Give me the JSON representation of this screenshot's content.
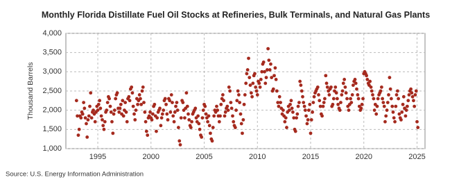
{
  "chart_data": {
    "type": "scatter",
    "title": "Monthly Florida Distillate Fuel Oil Stocks at Refineries, Bulk Terminals, and Natural Gas Plants",
    "y_label": "Thousand Barrels",
    "source": "Source: U.S. Energy Information Administration",
    "xlim": [
      1992,
      2025.75
    ],
    "xticks": [
      1995,
      2000,
      2005,
      2010,
      2015,
      2020,
      2025
    ],
    "ylim": [
      1000,
      4000
    ],
    "yticks": [
      {
        "value": 1000,
        "label": "1,000"
      },
      {
        "value": 1500,
        "label": "1,500"
      },
      {
        "value": 2000,
        "label": "2,000"
      },
      {
        "value": 2500,
        "label": "2,500"
      },
      {
        "value": 3000,
        "label": "3,000"
      },
      {
        "value": 3500,
        "label": "3,500"
      },
      {
        "value": 4000,
        "label": "4,000"
      }
    ],
    "grid": true,
    "color": "#a52a1e",
    "x": [
      1993,
      1993.08,
      1993.17,
      1993.25,
      1993.33,
      1993.42,
      1993.5,
      1993.58,
      1993.67,
      1993.75,
      1993.83,
      1993.92,
      1994,
      1994.08,
      1994.17,
      1994.25,
      1994.33,
      1994.42,
      1994.5,
      1994.58,
      1994.67,
      1994.75,
      1994.83,
      1994.92,
      1995,
      1995.08,
      1995.17,
      1995.25,
      1995.33,
      1995.42,
      1995.5,
      1995.58,
      1995.67,
      1995.75,
      1995.83,
      1995.92,
      1996,
      1996.08,
      1996.17,
      1996.25,
      1996.33,
      1996.42,
      1996.5,
      1996.58,
      1996.67,
      1996.75,
      1996.83,
      1996.92,
      1997,
      1997.08,
      1997.17,
      1997.25,
      1997.33,
      1997.42,
      1997.5,
      1997.58,
      1997.67,
      1997.75,
      1997.83,
      1997.92,
      1998,
      1998.08,
      1998.17,
      1998.25,
      1998.33,
      1998.42,
      1998.5,
      1998.58,
      1998.67,
      1998.75,
      1998.83,
      1998.92,
      1999,
      1999.08,
      1999.17,
      1999.25,
      1999.33,
      1999.42,
      1999.5,
      1999.58,
      1999.67,
      1999.75,
      1999.83,
      1999.92,
      2000,
      2000.08,
      2000.17,
      2000.25,
      2000.33,
      2000.42,
      2000.5,
      2000.58,
      2000.67,
      2000.75,
      2000.83,
      2000.92,
      2001,
      2001.08,
      2001.17,
      2001.25,
      2001.33,
      2001.42,
      2001.5,
      2001.58,
      2001.67,
      2001.75,
      2001.83,
      2001.92,
      2002,
      2002.08,
      2002.17,
      2002.25,
      2002.33,
      2002.42,
      2002.5,
      2002.58,
      2002.67,
      2002.75,
      2002.83,
      2002.92,
      2003,
      2003.08,
      2003.17,
      2003.25,
      2003.33,
      2003.42,
      2003.5,
      2003.58,
      2003.67,
      2003.75,
      2003.83,
      2003.92,
      2004,
      2004.08,
      2004.17,
      2004.25,
      2004.33,
      2004.42,
      2004.5,
      2004.58,
      2004.67,
      2004.75,
      2004.83,
      2004.92,
      2005,
      2005.08,
      2005.17,
      2005.25,
      2005.33,
      2005.42,
      2005.5,
      2005.58,
      2005.67,
      2005.75,
      2005.83,
      2005.92,
      2006,
      2006.08,
      2006.17,
      2006.25,
      2006.33,
      2006.42,
      2006.5,
      2006.58,
      2006.67,
      2006.75,
      2006.83,
      2006.92,
      2007,
      2007.08,
      2007.17,
      2007.25,
      2007.33,
      2007.42,
      2007.5,
      2007.58,
      2007.67,
      2007.75,
      2007.83,
      2007.92,
      2008,
      2008.08,
      2008.17,
      2008.25,
      2008.33,
      2008.42,
      2008.5,
      2008.58,
      2008.67,
      2008.75,
      2008.83,
      2008.92,
      2009,
      2009.08,
      2009.17,
      2009.25,
      2009.33,
      2009.42,
      2009.5,
      2009.58,
      2009.67,
      2009.75,
      2009.83,
      2009.92,
      2010,
      2010.08,
      2010.17,
      2010.25,
      2010.33,
      2010.42,
      2010.5,
      2010.58,
      2010.67,
      2010.75,
      2010.83,
      2010.92,
      2011,
      2011.08,
      2011.17,
      2011.25,
      2011.33,
      2011.42,
      2011.5,
      2011.58,
      2011.67,
      2011.75,
      2011.83,
      2011.92,
      2012,
      2012.08,
      2012.17,
      2012.25,
      2012.33,
      2012.42,
      2012.5,
      2012.58,
      2012.67,
      2012.75,
      2012.83,
      2012.92,
      2013,
      2013.08,
      2013.17,
      2013.25,
      2013.33,
      2013.42,
      2013.5,
      2013.58,
      2013.67,
      2013.75,
      2013.83,
      2013.92,
      2014,
      2014.08,
      2014.17,
      2014.25,
      2014.33,
      2014.42,
      2014.5,
      2014.58,
      2014.67,
      2014.75,
      2014.83,
      2014.92,
      2015,
      2015.08,
      2015.17,
      2015.25,
      2015.33,
      2015.42,
      2015.5,
      2015.58,
      2015.67,
      2015.75,
      2015.83,
      2015.92,
      2016,
      2016.08,
      2016.17,
      2016.25,
      2016.33,
      2016.42,
      2016.5,
      2016.58,
      2016.67,
      2016.75,
      2016.83,
      2016.92,
      2017,
      2017.08,
      2017.17,
      2017.25,
      2017.33,
      2017.42,
      2017.5,
      2017.58,
      2017.67,
      2017.75,
      2017.83,
      2017.92,
      2018,
      2018.08,
      2018.17,
      2018.25,
      2018.33,
      2018.42,
      2018.5,
      2018.58,
      2018.67,
      2018.75,
      2018.83,
      2018.92,
      2019,
      2019.08,
      2019.17,
      2019.25,
      2019.33,
      2019.42,
      2019.5,
      2019.58,
      2019.67,
      2019.75,
      2019.83,
      2019.92,
      2020,
      2020.08,
      2020.17,
      2020.25,
      2020.33,
      2020.42,
      2020.5,
      2020.58,
      2020.67,
      2020.75,
      2020.83,
      2020.92,
      2021,
      2021.08,
      2021.17,
      2021.25,
      2021.33,
      2021.42,
      2021.5,
      2021.58,
      2021.67,
      2021.75,
      2021.83,
      2021.92,
      2022,
      2022.08,
      2022.17,
      2022.25,
      2022.33,
      2022.42,
      2022.5,
      2022.58,
      2022.67,
      2022.75,
      2022.83,
      2022.92,
      2023,
      2023.08,
      2023.17,
      2023.25,
      2023.33,
      2023.42,
      2023.5,
      2023.58,
      2023.67,
      2023.75,
      2023.83,
      2023.92,
      2024,
      2024.08,
      2024.17,
      2024.25,
      2024.33,
      2024.42,
      2024.5,
      2024.58,
      2024.67,
      2024.75,
      2024.83,
      2024.92,
      2025,
      2025.08
    ],
    "values": [
      2250,
      1850,
      1350,
      1500,
      1850,
      1800,
      1950,
      1900,
      2200,
      2050,
      1800,
      1650,
      1300,
      1750,
      1850,
      2100,
      2450,
      1800,
      1950,
      2000,
      1900,
      1700,
      1950,
      2100,
      2000,
      2150,
      2250,
      2050,
      1850,
      1750,
      1600,
      1500,
      1700,
      1950,
      2000,
      2200,
      2350,
      2300,
      2100,
      1950,
      1700,
      1400,
      1900,
      2000,
      2300,
      2400,
      2450,
      2050,
      1950,
      2050,
      2150,
      1900,
      2250,
      1850,
      2000,
      2200,
      1950,
      1700,
      2300,
      2350,
      2250,
      2550,
      2600,
      2450,
      2100,
      1900,
      1750,
      2000,
      2300,
      2150,
      2250,
      2400,
      2300,
      2150,
      2500,
      2600,
      2200,
      1950,
      1700,
      1450,
      1350,
      1800,
      1850,
      1950,
      1800,
      1750,
      1900,
      2100,
      2150,
      1850,
      1450,
      1800,
      1950,
      2000,
      2050,
      1600,
      1800,
      1900,
      2000,
      2250,
      2300,
      2150,
      1900,
      1750,
      2300,
      2250,
      1950,
      2400,
      2200,
      1850,
      1700,
      1950,
      2100,
      2200,
      2000,
      1550,
      1200,
      1100,
      1800,
      2250,
      2200,
      2000,
      1800,
      2050,
      2450,
      2100,
      1900,
      1750,
      1600,
      1550,
      1700,
      1900,
      1950,
      2000,
      2050,
      1800,
      1700,
      1850,
      1650,
      1500,
      1350,
      1300,
      1800,
      2000,
      2150,
      2100,
      1900,
      1800,
      1700,
      1850,
      1600,
      1400,
      1250,
      1200,
      1550,
      1850,
      2000,
      1950,
      2100,
      2000,
      1850,
      1700,
      1850,
      2150,
      2300,
      2400,
      2250,
      1850,
      1950,
      2050,
      2100,
      2000,
      2600,
      2500,
      2200,
      2050,
      1850,
      1700,
      1600,
      1550,
      2000,
      2250,
      2500,
      2400,
      2200,
      1900,
      1650,
      1400,
      1750,
      2150,
      2400,
      2700,
      2950,
      3050,
      3350,
      2850,
      2650,
      2450,
      2350,
      2700,
      2900,
      2950,
      2600,
      2500,
      2400,
      2750,
      2700,
      2600,
      2800,
      3000,
      3200,
      3250,
      3000,
      2700,
      2850,
      3050,
      3600,
      3300,
      3050,
      3200,
      2850,
      2500,
      2550,
      2900,
      3100,
      2800,
      2500,
      2200,
      2100,
      2350,
      2200,
      2050,
      1900,
      2000,
      1850,
      1700,
      1800,
      1550,
      1950,
      2100,
      2000,
      2150,
      2250,
      2050,
      1950,
      1800,
      1500,
      1450,
      1800,
      1900,
      2100,
      2200,
      2750,
      2650,
      2500,
      2350,
      2200,
      2100,
      2000,
      1850,
      1650,
      1750,
      2000,
      2150,
      1400,
      1750,
      1950,
      2200,
      2350,
      2450,
      2500,
      2550,
      2600,
      2400,
      2250,
      2100,
      1900,
      1850,
      2100,
      2200,
      2300,
      2900,
      2700,
      2600,
      2500,
      2400,
      2550,
      2600,
      2100,
      2150,
      2300,
      2500,
      2600,
      2450,
      2300,
      2150,
      2050,
      2000,
      2200,
      2400,
      2500,
      2700,
      2800,
      2600,
      2450,
      2300,
      2100,
      2000,
      2150,
      2300,
      2200,
      2400,
      2650,
      2750,
      2800,
      2700,
      2550,
      2400,
      2300,
      2100,
      2000,
      2050,
      2150,
      2300,
      2950,
      3000,
      2950,
      2900,
      2800,
      2700,
      2650,
      2750,
      2600,
      2500,
      2400,
      2300,
      2000,
      2150,
      1900,
      2100,
      2300,
      2400,
      2450,
      2500,
      2600,
      2300,
      2200,
      2100,
      1700,
      1850,
      2000,
      2200,
      2400,
      2850,
      2550,
      2300,
      2100,
      1950,
      1800,
      1700,
      2100,
      2400,
      2500,
      2300,
      1900,
      1800,
      1750,
      1950,
      2150,
      2350,
      2050,
      1850,
      2000,
      2100,
      2250,
      2400,
      2500,
      2550,
      2450,
      2350,
      2250,
      2100,
      2400,
      2500,
      1700,
      1550
    ]
  }
}
